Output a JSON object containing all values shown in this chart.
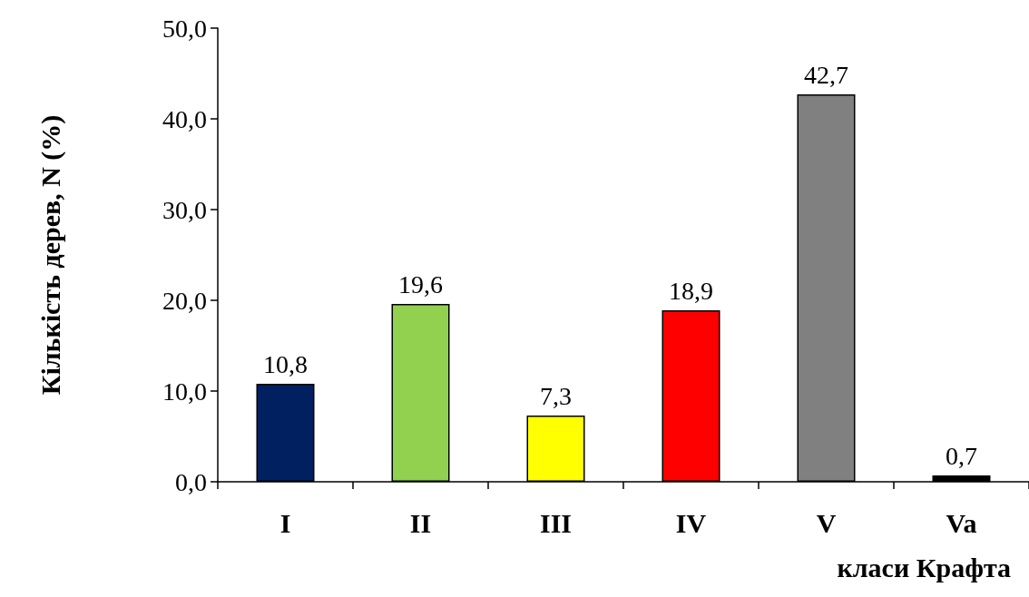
{
  "chart_data": {
    "type": "bar",
    "xlabel": "класи Крафта",
    "ylabel": "Кількість дерев, N (%)",
    "categories": [
      "I",
      "II",
      "III",
      "IV",
      "V",
      "Va"
    ],
    "values": [
      10.8,
      19.6,
      7.3,
      18.9,
      42.7,
      0.7
    ],
    "colors": [
      "#002060",
      "#92d050",
      "#ffff00",
      "#ff0000",
      "#808080",
      "#000000"
    ],
    "value_labels": [
      "10,8",
      "19,6",
      "7,3",
      "18,9",
      "42,7",
      "0,7"
    ],
    "ylim": [
      0,
      50
    ],
    "yticks": [
      {
        "value": 0,
        "label": "0,0"
      },
      {
        "value": 10,
        "label": "10,0"
      },
      {
        "value": 20,
        "label": "20,0"
      },
      {
        "value": 30,
        "label": "30,0"
      },
      {
        "value": 40,
        "label": "40,0"
      },
      {
        "value": 50,
        "label": "50,0"
      }
    ],
    "grid": false
  }
}
